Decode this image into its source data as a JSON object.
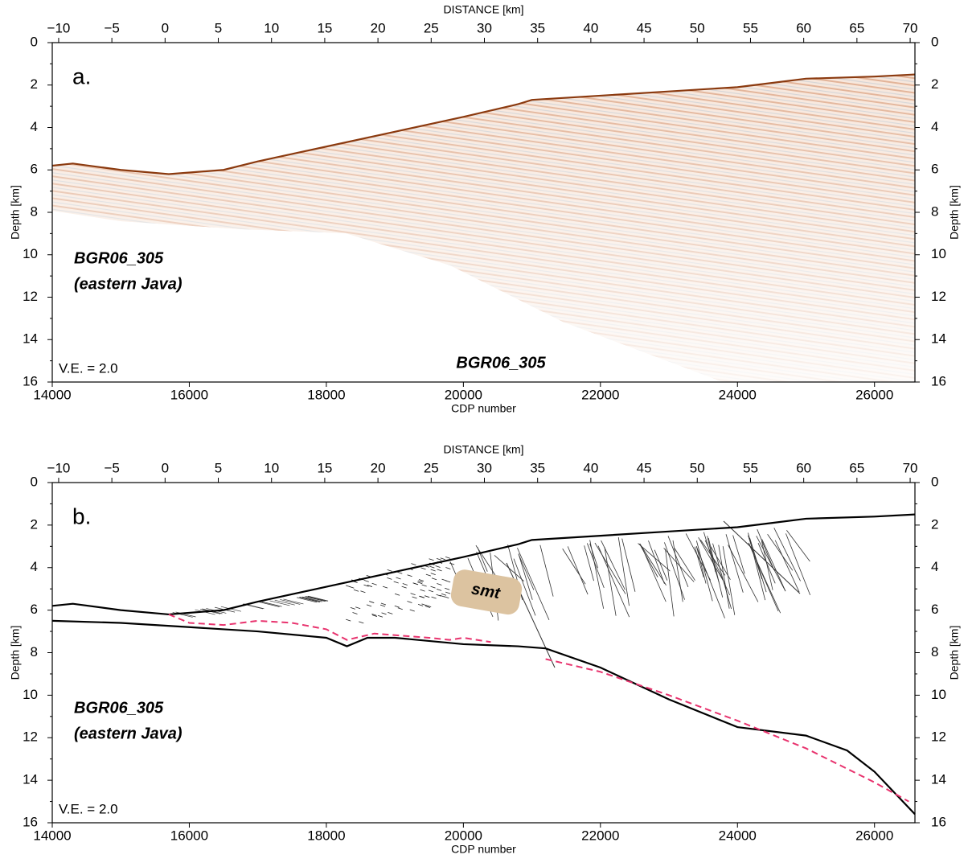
{
  "chart_data": [
    {
      "type": "line",
      "panel_label": "a.",
      "x_label": "CDP number",
      "x2_label": "DISTANCE [km]",
      "y_label": "Depth [km]",
      "annotations": [
        "BGR06_305",
        "(eastern Java)",
        "V.E. = 2.0",
        "BGR06_305"
      ],
      "xlim": [
        14000,
        26590
      ],
      "xticks": [
        14000,
        16000,
        18000,
        20000,
        22000,
        24000,
        26000
      ],
      "x2lim": [
        -10.6,
        70.45
      ],
      "x2ticks": [
        {
          "value": -10,
          "label": "−10"
        },
        {
          "value": -5,
          "label": "−5"
        },
        0,
        5,
        10,
        15,
        20,
        25,
        30,
        35,
        40,
        45,
        50,
        55,
        60,
        65,
        70
      ],
      "ylim": [
        16,
        0
      ],
      "yticks": [
        0,
        2,
        4,
        6,
        8,
        10,
        12,
        14,
        16
      ],
      "series": [
        {
          "color": "#8b3a0f",
          "dash": false,
          "x": [
            14000,
            14300,
            15000,
            15700,
            16500,
            17000,
            18000,
            19000,
            20000,
            20800,
            21000,
            22000,
            23000,
            24000,
            24500,
            25000,
            26000,
            26590
          ],
          "values": [
            5.8,
            5.7,
            6.0,
            6.2,
            6.0,
            5.6,
            4.9,
            4.2,
            3.5,
            2.9,
            2.7,
            2.5,
            2.3,
            2.1,
            1.9,
            1.7,
            1.6,
            1.5
          ]
        }
      ]
    },
    {
      "type": "line",
      "panel_label": "b.",
      "x_label": "CDP number",
      "x2_label": "DISTANCE [km]",
      "y_label": "Depth [km]",
      "annotations": [
        "BGR06_305",
        "(eastern Java)",
        "V.E. = 2.0",
        "smt"
      ],
      "xlim": [
        14000,
        26590
      ],
      "xticks": [
        14000,
        16000,
        18000,
        20000,
        22000,
        24000,
        26000
      ],
      "x2lim": [
        -10.6,
        70.45
      ],
      "x2ticks": [
        {
          "value": -10,
          "label": "−10"
        },
        {
          "value": -5,
          "label": "−5"
        },
        0,
        5,
        10,
        15,
        20,
        25,
        30,
        35,
        40,
        45,
        50,
        55,
        60,
        65,
        70
      ],
      "ylim": [
        16,
        0
      ],
      "yticks": [
        0,
        2,
        4,
        6,
        8,
        10,
        12,
        14,
        16
      ],
      "series": [
        {
          "color": "#000000",
          "dash": false,
          "x": [
            14000,
            14300,
            15000,
            15700,
            16500,
            17000,
            18000,
            19000,
            20000,
            20800,
            21000,
            22000,
            23000,
            24000,
            24500,
            25000,
            26000,
            26590
          ],
          "values": [
            5.8,
            5.7,
            6.0,
            6.2,
            6.0,
            5.6,
            4.9,
            4.2,
            3.5,
            2.9,
            2.7,
            2.5,
            2.3,
            2.1,
            1.9,
            1.7,
            1.6,
            1.5
          ]
        },
        {
          "color": "#000000",
          "dash": false,
          "x": [
            14000,
            15000,
            16000,
            17000,
            18000,
            18300,
            18600,
            19000,
            20000,
            20800,
            21200,
            22000,
            23000,
            24000,
            25000,
            25600,
            26000,
            26590
          ],
          "values": [
            6.5,
            6.6,
            6.8,
            7.0,
            7.3,
            7.7,
            7.3,
            7.3,
            7.6,
            7.7,
            7.8,
            8.7,
            10.2,
            11.5,
            11.9,
            12.6,
            13.6,
            15.6
          ]
        },
        {
          "color": "#e8336e",
          "dash": true,
          "x": [
            15700,
            16000,
            16500,
            17000,
            17500,
            18000,
            18300,
            18700,
            19500,
            19800,
            20000,
            20400,
            20800,
            21200,
            22000,
            23000,
            24000,
            25000,
            26000,
            26500
          ],
          "values": [
            6.2,
            6.6,
            6.7,
            6.5,
            6.6,
            6.9,
            7.4,
            7.1,
            7.3,
            7.4,
            7.3,
            7.5,
            null,
            8.3,
            8.9,
            10.0,
            11.2,
            12.5,
            14.1,
            15.0
          ]
        }
      ]
    }
  ]
}
